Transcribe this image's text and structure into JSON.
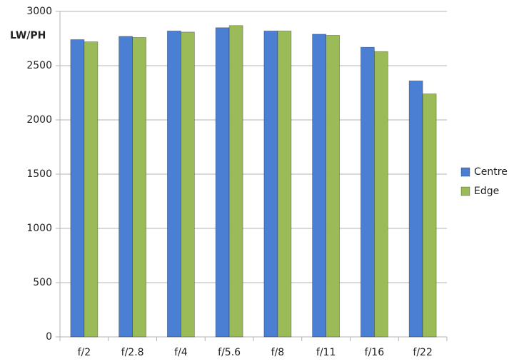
{
  "chart_data": {
    "type": "bar",
    "y_label": "LW/PH",
    "categories": [
      "f/2",
      "f/2.8",
      "f/4",
      "f/5.6",
      "f/8",
      "f/11",
      "f/16",
      "f/22"
    ],
    "series": [
      {
        "name": "Centre",
        "color": "#4a7fd4",
        "values": [
          2740,
          2770,
          2820,
          2850,
          2820,
          2790,
          2670,
          2360
        ]
      },
      {
        "name": "Edge",
        "color": "#9bbb59",
        "values": [
          2720,
          2760,
          2810,
          2870,
          2820,
          2780,
          2630,
          2240
        ]
      }
    ],
    "ylim": [
      0,
      3000
    ],
    "yticks": [
      0,
      500,
      1000,
      1500,
      2000,
      2500,
      3000
    ],
    "grid": true,
    "legend": "right"
  }
}
